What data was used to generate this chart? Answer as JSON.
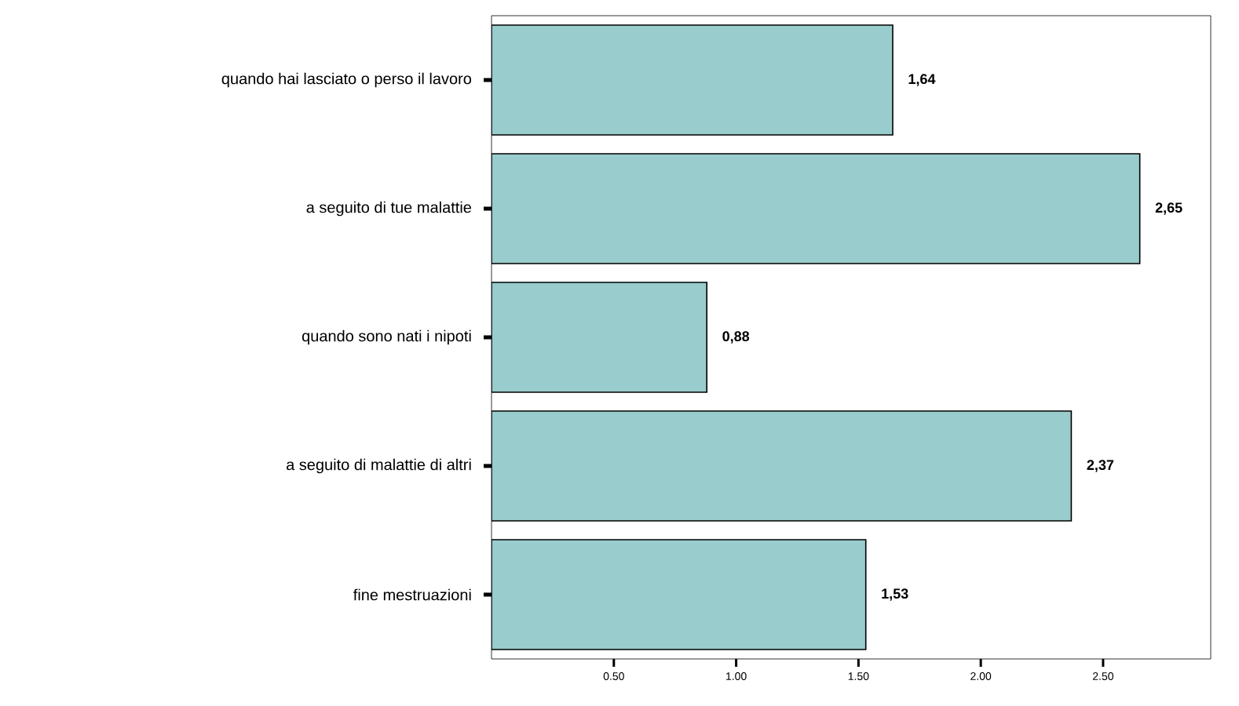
{
  "chart_data": {
    "type": "bar",
    "orientation": "horizontal",
    "categories": [
      "quando hai lasciato o perso il lavoro",
      "a seguito di tue malattie",
      "quando sono nati i nipoti",
      "a seguito di malattie di altri",
      "fine mestruazioni"
    ],
    "values": [
      1.64,
      2.65,
      0.88,
      2.37,
      1.53
    ],
    "value_labels": [
      "1,64",
      "2,65",
      "0,88",
      "2,37",
      "1,53"
    ],
    "color": "#99cccc",
    "xlim": [
      0,
      2.94
    ],
    "xticks": [
      {
        "value": 0.5,
        "label": "0.50"
      },
      {
        "value": 1.0,
        "label": "1.00"
      },
      {
        "value": 1.5,
        "label": "1.50"
      },
      {
        "value": 2.0,
        "label": "2.00"
      },
      {
        "value": 2.5,
        "label": "2.50"
      }
    ],
    "grid": false
  }
}
